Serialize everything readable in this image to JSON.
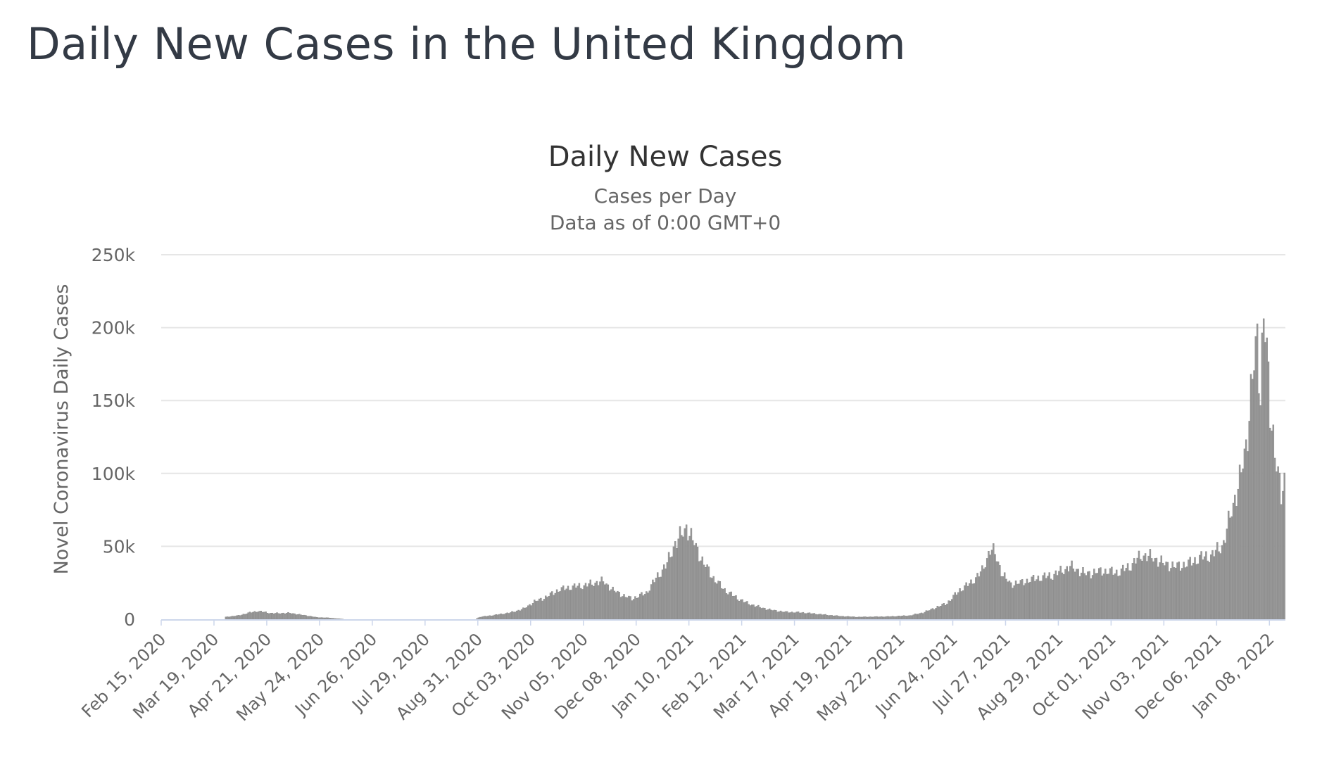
{
  "page": {
    "title": "Daily New Cases in the United Kingdom"
  },
  "chart_data": {
    "type": "bar",
    "title": "Daily New Cases",
    "subtitle_lines": [
      "Cases per Day",
      "Data as of 0:00 GMT+0"
    ],
    "xlabel": "",
    "ylabel": "Novel Coronavirus Daily Cases",
    "ylim": [
      0,
      250000
    ],
    "y_ticks": [
      0,
      50000,
      100000,
      150000,
      200000,
      250000
    ],
    "y_tick_labels": [
      "0",
      "50k",
      "100k",
      "150k",
      "200k",
      "250k"
    ],
    "x_tick_labels": [
      "Feb 15, 2020",
      "Mar 19, 2020",
      "Apr 21, 2020",
      "May 24, 2020",
      "Jun 26, 2020",
      "Jul 29, 2020",
      "Aug 31, 2020",
      "Oct 03, 2020",
      "Nov 05, 2020",
      "Dec 08, 2020",
      "Jan 10, 2021",
      "Feb 12, 2021",
      "Mar 17, 2021",
      "Apr 19, 2021",
      "May 22, 2021",
      "Jun 24, 2021",
      "Jul 27, 2021",
      "Aug 29, 2021",
      "Oct 01, 2021",
      "Nov 03, 2021",
      "Dec 06, 2021",
      "Jan 08, 2022"
    ],
    "grid": true,
    "legend": "none",
    "date_start": "Feb 15, 2020",
    "date_end": "Jan 17, 2022",
    "series": [
      {
        "values_description": "estimated daily new cases, one value per day, interpolated between points read off the chart",
        "anchors": [
          [
            "Feb 15, 2020",
            0
          ],
          [
            "Mar 25, 2020",
            0
          ],
          [
            "Mar 26, 2020",
            1500
          ],
          [
            "Apr 03, 2020",
            2500
          ],
          [
            "Apr 10, 2020",
            4500
          ],
          [
            "Apr 15, 2020",
            5500
          ],
          [
            "Apr 24, 2020",
            4000
          ],
          [
            "May 05, 2020",
            4200
          ],
          [
            "May 12, 2020",
            3000
          ],
          [
            "May 18, 2020",
            2000
          ],
          [
            "May 22, 2020",
            1200
          ],
          [
            "May 28, 2020",
            1000
          ],
          [
            "Jun 08, 2020",
            0
          ],
          [
            "Aug 29, 2020",
            0
          ],
          [
            "Sep 01, 2020",
            1500
          ],
          [
            "Sep 10, 2020",
            2800
          ],
          [
            "Sep 20, 2020",
            4500
          ],
          [
            "Sep 28, 2020",
            7000
          ],
          [
            "Oct 05, 2020",
            12000
          ],
          [
            "Oct 12, 2020",
            15000
          ],
          [
            "Oct 20, 2020",
            20000
          ],
          [
            "Oct 28, 2020",
            22000
          ],
          [
            "Nov 05, 2020",
            23000
          ],
          [
            "Nov 12, 2020",
            25000
          ],
          [
            "Nov 17, 2020",
            26000
          ],
          [
            "Nov 23, 2020",
            20000
          ],
          [
            "Nov 30, 2020",
            16000
          ],
          [
            "Dec 05, 2020",
            14000
          ],
          [
            "Dec 14, 2020",
            18000
          ],
          [
            "Dec 20, 2020",
            28000
          ],
          [
            "Dec 27, 2020",
            38000
          ],
          [
            "Dec 31, 2020",
            50000
          ],
          [
            "Jan 05, 2021",
            58000
          ],
          [
            "Jan 08, 2021",
            63000
          ],
          [
            "Jan 13, 2021",
            52000
          ],
          [
            "Jan 18, 2021",
            40000
          ],
          [
            "Jan 25, 2021",
            28000
          ],
          [
            "Feb 01, 2021",
            20000
          ],
          [
            "Feb 08, 2021",
            15000
          ],
          [
            "Feb 15, 2021",
            11000
          ],
          [
            "Feb 22, 2021",
            8500
          ],
          [
            "Mar 01, 2021",
            6500
          ],
          [
            "Mar 10, 2021",
            5000
          ],
          [
            "Mar 22, 2021",
            4500
          ],
          [
            "Apr 05, 2021",
            3000
          ],
          [
            "Apr 15, 2021",
            2000
          ],
          [
            "Apr 25, 2021",
            1500
          ],
          [
            "May 15, 2021",
            1800
          ],
          [
            "May 28, 2021",
            2500
          ],
          [
            "Jun 05, 2021",
            4500
          ],
          [
            "Jun 12, 2021",
            7500
          ],
          [
            "Jun 20, 2021",
            11000
          ],
          [
            "Jun 28, 2021",
            20000
          ],
          [
            "Jul 05, 2021",
            25000
          ],
          [
            "Jul 12, 2021",
            33000
          ],
          [
            "Jul 17, 2021",
            48000
          ],
          [
            "Jul 20, 2021",
            45000
          ],
          [
            "Jul 25, 2021",
            30000
          ],
          [
            "Jul 30, 2021",
            24000
          ],
          [
            "Aug 05, 2021",
            25000
          ],
          [
            "Aug 15, 2021",
            28000
          ],
          [
            "Aug 25, 2021",
            30000
          ],
          [
            "Sep 05, 2021",
            36000
          ],
          [
            "Sep 15, 2021",
            31000
          ],
          [
            "Sep 25, 2021",
            33000
          ],
          [
            "Oct 05, 2021",
            32000
          ],
          [
            "Oct 12, 2021",
            36000
          ],
          [
            "Oct 20, 2021",
            44000
          ],
          [
            "Oct 27, 2021",
            42000
          ],
          [
            "Nov 03, 2021",
            38000
          ],
          [
            "Nov 10, 2021",
            36000
          ],
          [
            "Nov 18, 2021",
            38000
          ],
          [
            "Nov 25, 2021",
            42000
          ],
          [
            "Dec 03, 2021",
            44000
          ],
          [
            "Dec 10, 2021",
            52000
          ],
          [
            "Dec 15, 2021",
            75000
          ],
          [
            "Dec 20, 2021",
            95000
          ],
          [
            "Dec 24, 2021",
            118000
          ],
          [
            "Dec 28, 2021",
            168000
          ],
          [
            "Dec 31, 2021",
            188000
          ],
          [
            "Jan 02, 2022",
            155000
          ],
          [
            "Jan 04, 2022",
            218000
          ],
          [
            "Jan 06, 2022",
            180000
          ],
          [
            "Jan 08, 2022",
            140000
          ],
          [
            "Jan 11, 2022",
            120000
          ],
          [
            "Jan 13, 2022",
            100000
          ],
          [
            "Jan 15, 2022",
            82000
          ],
          [
            "Jan 17, 2022",
            93000
          ]
        ]
      }
    ],
    "colors": {
      "bar": "#999999",
      "bar_stroke": "#888888",
      "grid": "#e6e6e6",
      "axis": "#ccd6eb"
    }
  }
}
